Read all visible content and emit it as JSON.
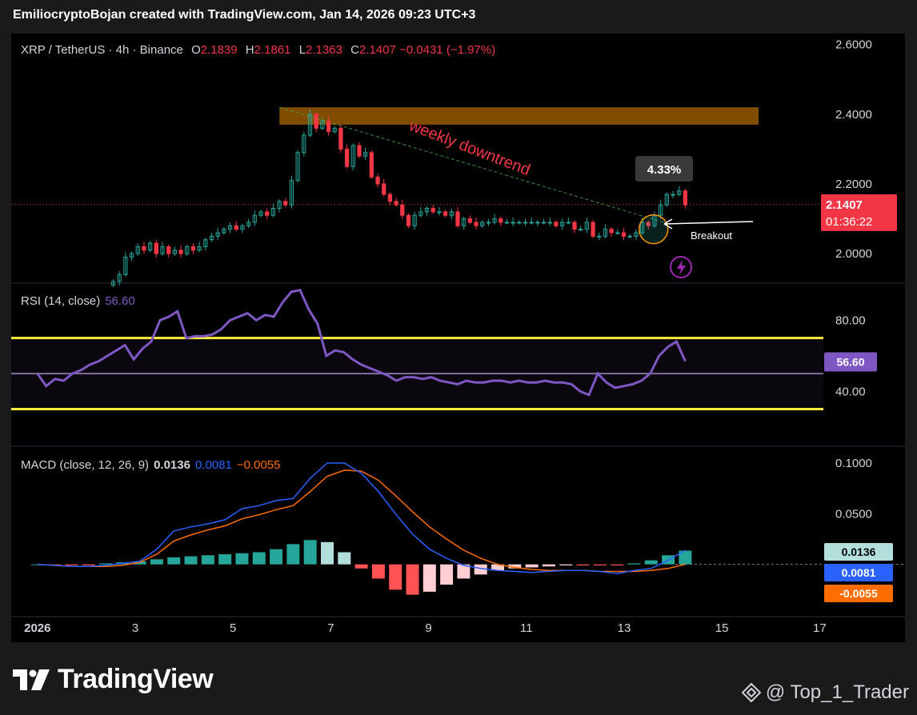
{
  "header": {
    "text": "EmiliocryptoBojan created with TradingView.com, Jan 14, 2026 09:23 UTC+3"
  },
  "main_legend": {
    "symbol": "XRP / TetherUS · 4h · Binance",
    "o_label": "O",
    "o": "2.1839",
    "h_label": "H",
    "h": "2.1861",
    "l_label": "L",
    "l": "2.1363",
    "c_label": "C",
    "c": "2.1407",
    "change": "−0.0431 (−1.97%)"
  },
  "annotations": {
    "downtrend": "weekly downtrend",
    "breakout": "Breakout",
    "percent": "4.33%"
  },
  "price_badge": {
    "price": "2.1407",
    "countdown": "01:36:22"
  },
  "rsi_legend": {
    "label": "RSI (14, close)",
    "value": "56.60"
  },
  "rsi_badge": "56.60",
  "macd_legend": {
    "label": "MACD (close, 12, 26, 9)",
    "v1": "0.0136",
    "v2": "0.0081",
    "v3": "−0.0055"
  },
  "macd_badges": {
    "hist": "0.0136",
    "macd": "0.0081",
    "signal": "-0.0055"
  },
  "footer": {
    "brand": "TradingView",
    "handle": "@ Top_1_Trader"
  },
  "colors": {
    "up": "#26a69a",
    "down": "#f23645",
    "rsi": "#7e57c2",
    "macd": "#2962ff",
    "signal": "#ff6d00",
    "band": "#ffeb3b",
    "zone": "#ff9800"
  },
  "chart_data": [
    {
      "type": "candlestick",
      "title": "XRP / TetherUS · 4h · Binance",
      "x_ticks": [
        "2026",
        "3",
        "5",
        "7",
        "9",
        "11",
        "13",
        "15",
        "17"
      ],
      "x_tick_days": [
        1,
        3,
        5,
        7,
        9,
        11,
        13,
        15,
        17
      ],
      "y_ticks": [
        "2.6000",
        "2.4000",
        "2.2000",
        "2.0000"
      ],
      "y_tick_values": [
        2.6,
        2.4,
        2.2,
        2.0
      ],
      "xlim": [
        1,
        17.6
      ],
      "ylim": [
        1.92,
        2.62
      ],
      "last_price": 2.1407,
      "resistance_zone": {
        "x_start": 5.95,
        "x_end": 15.75,
        "y_low": 2.37,
        "y_high": 2.42
      },
      "downtrend_line": {
        "start": [
          5.95,
          2.42
        ],
        "end": [
          13.8,
          2.09
        ]
      },
      "breakout_circle_at": [
        13.6,
        2.07
      ],
      "closes": [
        1.92,
        1.94,
        1.99,
        2.0,
        2.02,
        2.01,
        2.03,
        2.0,
        2.02,
        2.0,
        2.01,
        2.0,
        2.02,
        2.01,
        2.02,
        2.04,
        2.05,
        2.06,
        2.07,
        2.08,
        2.07,
        2.08,
        2.09,
        2.11,
        2.12,
        2.11,
        2.13,
        2.15,
        2.14,
        2.21,
        2.29,
        2.34,
        2.4,
        2.36,
        2.38,
        2.35,
        2.36,
        2.3,
        2.25,
        2.31,
        2.28,
        2.29,
        2.22,
        2.2,
        2.17,
        2.15,
        2.14,
        2.11,
        2.08,
        2.11,
        2.12,
        2.13,
        2.12,
        2.12,
        2.11,
        2.12,
        2.08,
        2.1,
        2.09,
        2.08,
        2.09,
        2.09,
        2.1,
        2.09,
        2.09,
        2.09,
        2.09,
        2.09,
        2.09,
        2.09,
        2.09,
        2.09,
        2.08,
        2.09,
        2.09,
        2.07,
        2.07,
        2.09,
        2.05,
        2.05,
        2.07,
        2.06,
        2.06,
        2.05,
        2.05,
        2.06,
        2.09,
        2.08,
        2.11,
        2.14,
        2.17,
        2.17,
        2.18,
        2.14
      ]
    },
    {
      "type": "line",
      "title": "RSI (14, close)",
      "series": [
        {
          "name": "RSI",
          "values": [
            50,
            43,
            47,
            46,
            50,
            52,
            55,
            57,
            60,
            63,
            66,
            58,
            64,
            68,
            80,
            82,
            85,
            70,
            71,
            71,
            72,
            75,
            80,
            82,
            84,
            80,
            83,
            82,
            90,
            96,
            97,
            86,
            78,
            60,
            63,
            62,
            58,
            55,
            53,
            51,
            49,
            46,
            48,
            48,
            47,
            48,
            46,
            45,
            44,
            46,
            45,
            45,
            46,
            46,
            45,
            46,
            45,
            45,
            46,
            45,
            45,
            44,
            40,
            38,
            50,
            45,
            42,
            43,
            44,
            46,
            50,
            60,
            65,
            68,
            57
          ]
        }
      ],
      "y_ticks": [
        "80.00",
        "40.00"
      ],
      "y_tick_values": [
        80,
        40
      ],
      "ylim": [
        10,
        100
      ],
      "bands": [
        70,
        50,
        30
      ],
      "last_value": 56.6
    },
    {
      "type": "bar",
      "title": "MACD (close, 12, 26, 9)",
      "y_ticks": [
        "0.1000",
        "0.0500"
      ],
      "y_tick_values": [
        0.1,
        0.05
      ],
      "ylim": [
        -0.05,
        0.115
      ],
      "series": [
        {
          "name": "MACD",
          "values": [
            0.0,
            -0.001,
            -0.002,
            -0.002,
            -0.001,
            0.001,
            0.003,
            0.015,
            0.033,
            0.037,
            0.04,
            0.044,
            0.055,
            0.058,
            0.063,
            0.065,
            0.085,
            0.1,
            0.1,
            0.09,
            0.072,
            0.05,
            0.03,
            0.015,
            0.006,
            -0.001,
            -0.004,
            -0.006,
            -0.007,
            -0.008,
            -0.007,
            -0.006,
            -0.006,
            -0.007,
            -0.009,
            -0.006,
            -0.004,
            0.004,
            0.014
          ]
        },
        {
          "name": "Signal",
          "values": [
            0.0,
            -0.001,
            -0.002,
            -0.002,
            -0.002,
            -0.001,
            0.002,
            0.01,
            0.023,
            0.029,
            0.034,
            0.038,
            0.045,
            0.049,
            0.054,
            0.058,
            0.072,
            0.087,
            0.093,
            0.092,
            0.083,
            0.068,
            0.052,
            0.037,
            0.025,
            0.014,
            0.006,
            0.0,
            -0.003,
            -0.005,
            -0.006,
            -0.006,
            -0.006,
            -0.007,
            -0.007,
            -0.007,
            -0.006,
            -0.004,
            0.0
          ]
        },
        {
          "name": "Histogram",
          "values": [
            0.0,
            -0.001,
            -0.001,
            -0.001,
            0.001,
            0.002,
            0.003,
            0.005,
            0.007,
            0.008,
            0.009,
            0.01,
            0.011,
            0.012,
            0.015,
            0.02,
            0.024,
            0.022,
            0.012,
            -0.004,
            -0.014,
            -0.025,
            -0.03,
            -0.027,
            -0.02,
            -0.014,
            -0.01,
            -0.006,
            -0.004,
            -0.003,
            -0.002,
            -0.001,
            -0.001,
            -0.001,
            -0.001,
            0.001,
            0.004,
            0.009,
            0.0136
          ]
        }
      ],
      "last_values": {
        "histogram": 0.0136,
        "macd": 0.0081,
        "signal": -0.0055
      }
    }
  ]
}
